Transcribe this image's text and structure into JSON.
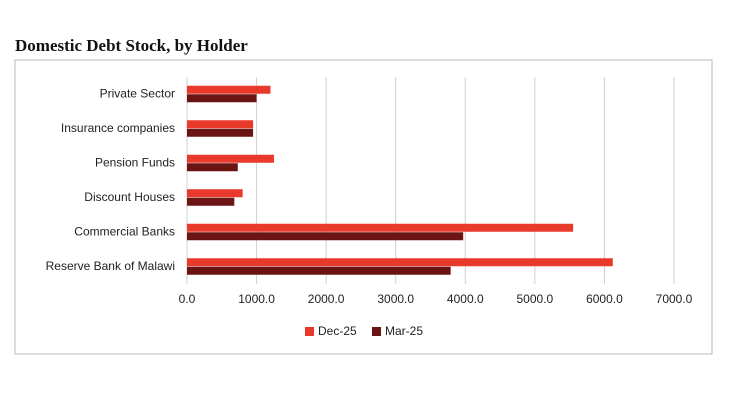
{
  "chart_data": {
    "type": "bar",
    "orientation": "horizontal",
    "title": "Domestic Debt Stock, by Holder",
    "categories": [
      "Private Sector",
      "Insurance companies",
      "Pension Funds",
      "Discount Houses",
      "Commercial Banks",
      "Reserve Bank of Malawi"
    ],
    "series": [
      {
        "name": "Dec-25",
        "color": "#e8392a",
        "values": [
          1200,
          950,
          1250,
          800,
          5550,
          6120
        ]
      },
      {
        "name": "Mar-25",
        "color": "#6b1414",
        "values": [
          1000,
          950,
          730,
          680,
          3970,
          3790
        ]
      }
    ],
    "xlim": [
      0,
      7000
    ],
    "xticks": [
      {
        "value": 0,
        "label": "0.0"
      },
      {
        "value": 1000,
        "label": "1000.0"
      },
      {
        "value": 2000,
        "label": "2000.0"
      },
      {
        "value": 3000,
        "label": "3000.0"
      },
      {
        "value": 4000,
        "label": "4000.0"
      },
      {
        "value": 5000,
        "label": "5000.0"
      },
      {
        "value": 6000,
        "label": "6000.0"
      },
      {
        "value": 7000,
        "label": "7000.0"
      }
    ],
    "grid": true,
    "legend": "bottom"
  }
}
